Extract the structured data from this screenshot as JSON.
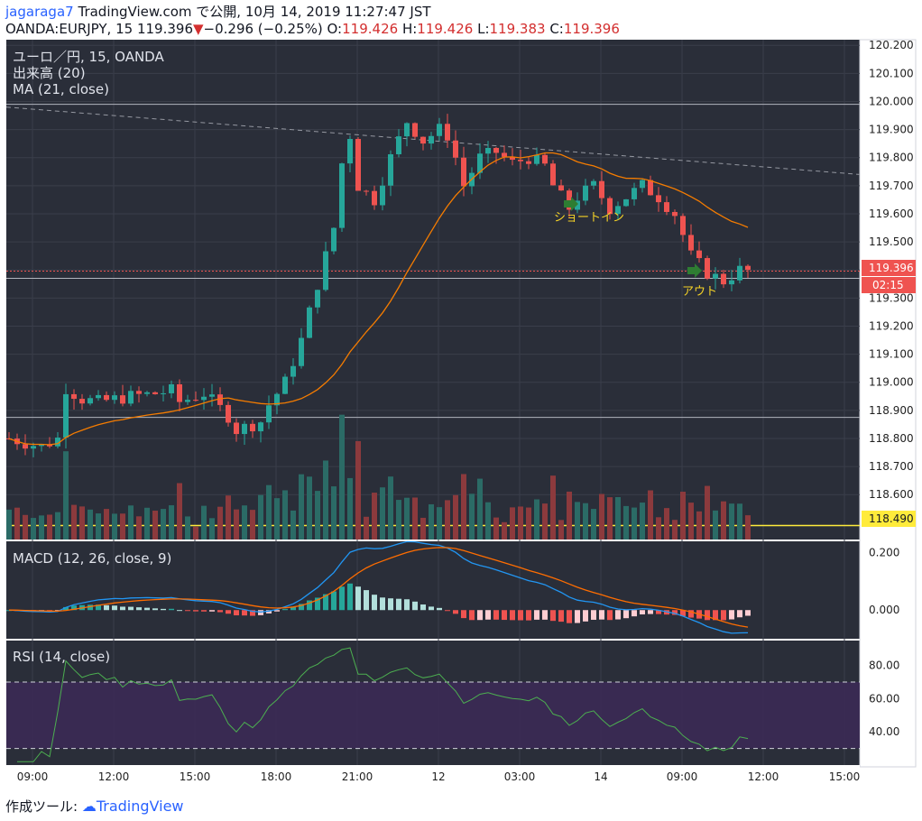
{
  "header": {
    "user": "jagaraga7",
    "publish_text": "TradingView.com で公開, 10月 14, 2019 11:27:47 JST",
    "symbol": "OANDA:EURJPY, 15",
    "last": "119.396",
    "change": "−0.296 (−0.25%)",
    "o_label": "O:",
    "o": "119.426",
    "h_label": "H:",
    "h": "119.426",
    "l_label": "L:",
    "l": "119.383",
    "c_label": "C:",
    "c": "119.396"
  },
  "legend": {
    "main_title": "ユーロ／円, 15, OANDA",
    "volume": "出来高 (20)",
    "ma": "MA (21, close)",
    "macd": "MACD (12, 26, close, 9)",
    "rsi": "RSI (14, close)"
  },
  "annotations": {
    "entry": "ショートイン",
    "exit": "アウト"
  },
  "price_labels": {
    "current": "119.396",
    "countdown": "02:15",
    "yellow_level": "118.490"
  },
  "footer": {
    "made_with": "作成ツール:",
    "brand": "TradingView"
  },
  "colors": {
    "background": "#2a2e39",
    "grid": "#3a3e4a",
    "up": "#26a69a",
    "down": "#ef5350",
    "ma_line": "#f57c00",
    "macd_line": "#2196f3",
    "signal_line": "#ff6d00",
    "rsi_line": "#4caf50",
    "rsi_band": "#3b2a55",
    "yellow_line": "#ffeb3b",
    "arrow": "#2e7d32"
  },
  "chart_data": [
    {
      "type": "candlestick",
      "panel": "price",
      "symbol": "OANDA:EURJPY",
      "timeframe": "15",
      "title": "ユーロ／円, 15, OANDA",
      "x_ticks": [
        "09:00",
        "12:00",
        "15:00",
        "18:00",
        "21:00",
        "12",
        "03:00",
        "14",
        "09:00",
        "12:00",
        "15:00"
      ],
      "y_ticks": [
        "120.200",
        "120.100",
        "120.000",
        "119.900",
        "119.800",
        "119.700",
        "119.600",
        "119.500",
        "119.400",
        "119.300",
        "119.200",
        "119.100",
        "119.000",
        "118.900",
        "118.800",
        "118.700",
        "118.600"
      ],
      "ylim": [
        118.44,
        120.22
      ],
      "horizontal_lines": [
        119.99,
        119.37,
        118.875
      ],
      "red_dotted_level": 119.396,
      "yellow_level": 118.49,
      "trendline": [
        [
          0,
          119.98
        ],
        [
          100,
          119.74
        ]
      ],
      "ohlc_anchor_path": [
        [
          0,
          118.8
        ],
        [
          4,
          118.77
        ],
        [
          6,
          118.8
        ],
        [
          7,
          118.98
        ],
        [
          9,
          118.94
        ],
        [
          11,
          118.93
        ],
        [
          13,
          118.94
        ],
        [
          15,
          118.95
        ],
        [
          18,
          118.96
        ],
        [
          20,
          118.97
        ],
        [
          21,
          118.93
        ],
        [
          24,
          118.96
        ],
        [
          27,
          118.88
        ],
        [
          28,
          118.83
        ],
        [
          31,
          118.86
        ],
        [
          32,
          118.92
        ],
        [
          34,
          119.0
        ],
        [
          36,
          119.15
        ],
        [
          38,
          119.35
        ],
        [
          40,
          119.55
        ],
        [
          41,
          119.78
        ],
        [
          42,
          119.88
        ],
        [
          43,
          119.7
        ],
        [
          45,
          119.65
        ],
        [
          47,
          119.8
        ],
        [
          49,
          119.93
        ],
        [
          51,
          119.86
        ],
        [
          53,
          119.9
        ],
        [
          54,
          119.88
        ],
        [
          55,
          119.8
        ],
        [
          56,
          119.7
        ],
        [
          58,
          119.8
        ],
        [
          60,
          119.82
        ],
        [
          62,
          119.78
        ],
        [
          64,
          119.8
        ],
        [
          66,
          119.77
        ],
        [
          67,
          119.7
        ],
        [
          69,
          119.62
        ],
        [
          70,
          119.66
        ],
        [
          72,
          119.7
        ],
        [
          74,
          119.62
        ],
        [
          76,
          119.66
        ],
        [
          78,
          119.7
        ],
        [
          80,
          119.66
        ],
        [
          82,
          119.6
        ],
        [
          84,
          119.45
        ],
        [
          86,
          119.39
        ],
        [
          88,
          119.36
        ],
        [
          90,
          119.4
        ],
        [
          91,
          119.396
        ]
      ],
      "ma": {
        "name": "MA (21, close)",
        "period": 21
      }
    },
    {
      "type": "bar",
      "panel": "volume",
      "title": "出来高 (20)"
    },
    {
      "type": "line",
      "panel": "macd",
      "title": "MACD (12, 26, close, 9)",
      "y_ticks": [
        "0.200",
        "0.000"
      ],
      "ylim": [
        -0.1,
        0.24
      ]
    },
    {
      "type": "line",
      "panel": "rsi",
      "title": "RSI (14, close)",
      "y_ticks": [
        "80.00",
        "60.00",
        "40.00"
      ],
      "ylim": [
        20,
        95
      ],
      "band": [
        30,
        70
      ]
    }
  ]
}
